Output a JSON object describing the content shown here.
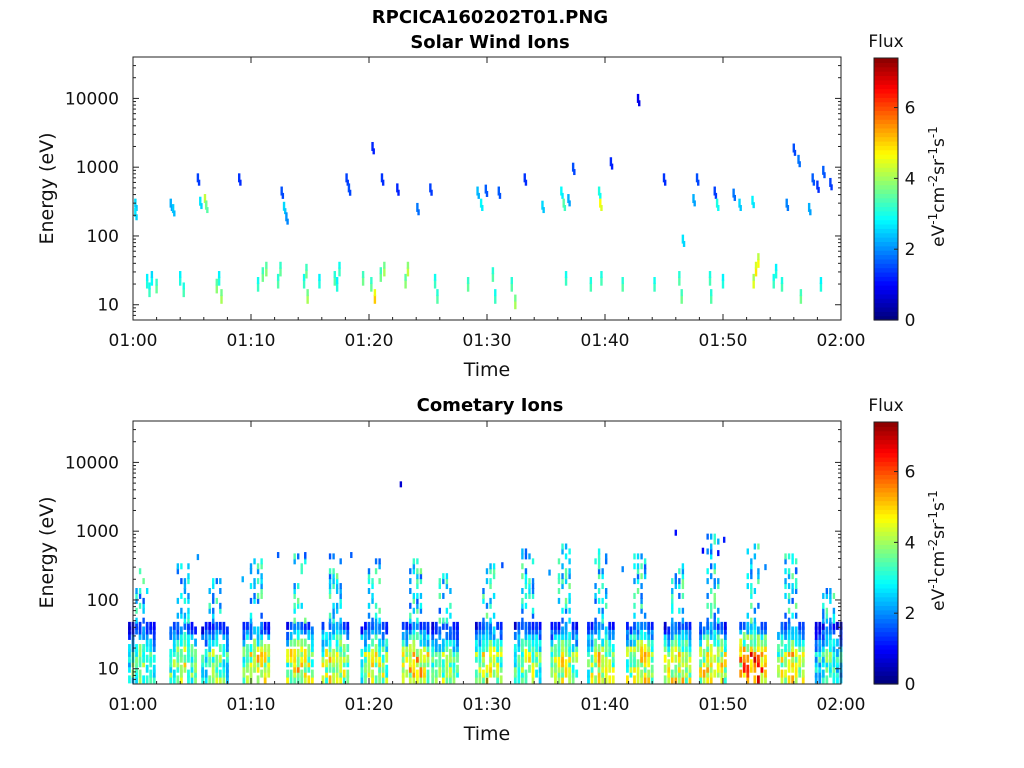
{
  "figure": {
    "title": "RPCICA160202T01.PNG"
  },
  "colorbar": {
    "label": "Flux",
    "unit_parts": [
      "eV",
      "-1",
      "cm",
      "-2",
      "sr",
      "-1",
      "s",
      "-1"
    ],
    "ticks": [
      0,
      2,
      4,
      6
    ],
    "range": [
      0,
      7.4
    ],
    "colormap": "jet"
  },
  "chart_data": [
    {
      "type": "heatmap",
      "title": "Solar Wind Ions",
      "xlabel": "Time",
      "ylabel": "Energy (eV)",
      "x_ticks": [
        "01:00",
        "01:10",
        "01:20",
        "01:30",
        "01:40",
        "01:50",
        "02:00"
      ],
      "x_range_minutes": [
        60,
        120
      ],
      "y_scale": "log",
      "y_ticks": [
        10,
        100,
        1000,
        10000
      ],
      "y_range": [
        6,
        40000
      ],
      "cells": [
        [
          60.2,
          300,
          2.5
        ],
        [
          60.2,
          220,
          2.6
        ],
        [
          61.2,
          20,
          3.0
        ],
        [
          61.4,
          15,
          3.2
        ],
        [
          61.6,
          22,
          2.8
        ],
        [
          62.0,
          17,
          3.5
        ],
        [
          63.2,
          300,
          2.2
        ],
        [
          63.4,
          250,
          2.4
        ],
        [
          64.0,
          22,
          3.0
        ],
        [
          64.3,
          15,
          3.3
        ],
        [
          65.5,
          700,
          1.4
        ],
        [
          65.7,
          320,
          2.6
        ],
        [
          66.1,
          350,
          4.2
        ],
        [
          66.2,
          280,
          3.6
        ],
        [
          67.1,
          17,
          3.8
        ],
        [
          67.3,
          22,
          3.0
        ],
        [
          67.5,
          12,
          4.0
        ],
        [
          69.0,
          700,
          1.3
        ],
        [
          70.6,
          18,
          3.2
        ],
        [
          71.0,
          25,
          3.6
        ],
        [
          71.3,
          30,
          3.8
        ],
        [
          72.3,
          20,
          3.4
        ],
        [
          72.5,
          30,
          3.5
        ],
        [
          72.6,
          450,
          1.5
        ],
        [
          72.8,
          270,
          2.5
        ],
        [
          73.0,
          190,
          2.0
        ],
        [
          74.5,
          20,
          3.2
        ],
        [
          74.7,
          28,
          3.6
        ],
        [
          74.8,
          12,
          4.0
        ],
        [
          75.8,
          20,
          3.0
        ],
        [
          77.1,
          22,
          3.4
        ],
        [
          77.3,
          18,
          3.0
        ],
        [
          77.5,
          30,
          3.2
        ],
        [
          78.1,
          700,
          1.4
        ],
        [
          78.3,
          500,
          1.5
        ],
        [
          79.5,
          22,
          3.6
        ],
        [
          80.2,
          18,
          3.5
        ],
        [
          80.5,
          12,
          5.0
        ],
        [
          81.0,
          25,
          3.6
        ],
        [
          81.3,
          30,
          4.0
        ],
        [
          80.3,
          2000,
          1.2
        ],
        [
          81.1,
          700,
          1.3
        ],
        [
          82.4,
          500,
          1.2
        ],
        [
          83.1,
          20,
          3.8
        ],
        [
          83.3,
          30,
          4.2
        ],
        [
          84.1,
          260,
          1.8
        ],
        [
          85.2,
          500,
          1.4
        ],
        [
          85.6,
          20,
          3.2
        ],
        [
          85.8,
          12,
          3.4
        ],
        [
          88.4,
          18,
          3.5
        ],
        [
          89.2,
          450,
          2.3
        ],
        [
          89.5,
          300,
          2.8
        ],
        [
          89.9,
          480,
          1.6
        ],
        [
          90.5,
          25,
          3.4
        ],
        [
          90.7,
          12,
          3.2
        ],
        [
          91.0,
          450,
          1.6
        ],
        [
          92.1,
          18,
          3.4
        ],
        [
          92.4,
          10,
          4.0
        ],
        [
          93.2,
          700,
          1.3
        ],
        [
          94.7,
          280,
          2.5
        ],
        [
          96.3,
          450,
          2.8
        ],
        [
          96.5,
          300,
          3.4
        ],
        [
          96.7,
          22,
          3.2
        ],
        [
          96.9,
          350,
          2.2
        ],
        [
          97.3,
          1000,
          1.5
        ],
        [
          98.8,
          18,
          3.3
        ],
        [
          99.5,
          450,
          3.0
        ],
        [
          99.6,
          300,
          4.6
        ],
        [
          99.7,
          22,
          3.3
        ],
        [
          100.5,
          1200,
          1.2
        ],
        [
          101.5,
          18,
          3.4
        ],
        [
          102.8,
          10000,
          0.8
        ],
        [
          104.2,
          18,
          3.2
        ],
        [
          105.0,
          700,
          1.3
        ],
        [
          106.3,
          22,
          3.4
        ],
        [
          106.5,
          12,
          3.6
        ],
        [
          106.6,
          90,
          2.6
        ],
        [
          107.5,
          350,
          2.2
        ],
        [
          107.8,
          700,
          1.5
        ],
        [
          108.9,
          22,
          3.3
        ],
        [
          109.0,
          12,
          3.4
        ],
        [
          109.3,
          450,
          1.4
        ],
        [
          109.5,
          300,
          3.0
        ],
        [
          110.0,
          20,
          3.0
        ],
        [
          110.9,
          420,
          1.8
        ],
        [
          111.4,
          300,
          2.5
        ],
        [
          112.8,
          30,
          4.8
        ],
        [
          112.6,
          20,
          4.4
        ],
        [
          113.0,
          40,
          4.6
        ],
        [
          112.5,
          330,
          2.7
        ],
        [
          114.3,
          20,
          3.2
        ],
        [
          114.5,
          28,
          3.0
        ],
        [
          115.0,
          18,
          3.3
        ],
        [
          115.4,
          300,
          1.9
        ],
        [
          116.0,
          1900,
          1.5
        ],
        [
          116.4,
          1300,
          1.8
        ],
        [
          116.6,
          12,
          3.6
        ],
        [
          117.3,
          260,
          2.2
        ],
        [
          117.6,
          700,
          1.6
        ],
        [
          118.0,
          550,
          1.3
        ],
        [
          118.3,
          18,
          3.0
        ],
        [
          118.5,
          900,
          1.6
        ],
        [
          119.1,
          600,
          1.4
        ]
      ]
    },
    {
      "type": "heatmap",
      "title": "Cometary Ions",
      "xlabel": "Time",
      "ylabel": "Energy (eV)",
      "x_ticks": [
        "01:00",
        "01:10",
        "01:20",
        "01:30",
        "01:40",
        "01:50",
        "02:00"
      ],
      "x_range_minutes": [
        60,
        120
      ],
      "y_scale": "log",
      "y_ticks": [
        10,
        100,
        1000,
        10000
      ],
      "y_range": [
        6,
        40000
      ],
      "columns": [
        60.8,
        64.3,
        67.0,
        70.5,
        74.2,
        77.2,
        80.5,
        84.0,
        86.5,
        90.2,
        93.5,
        96.6,
        99.7,
        103.0,
        106.2,
        109.2,
        112.6,
        115.8,
        119.0
      ],
      "column_peaks": [
        4.6,
        5.2,
        4.6,
        5.6,
        5.8,
        5.8,
        5.4,
        6.0,
        4.8,
        5.6,
        5.2,
        5.4,
        5.6,
        5.8,
        5.8,
        6.2,
        7.2,
        5.8,
        4.2
      ],
      "column_tops": [
        300,
        350,
        220,
        400,
        480,
        450,
        420,
        400,
        250,
        350,
        550,
        600,
        550,
        450,
        350,
        900,
        600,
        500,
        150
      ],
      "extra_cells": [
        [
          82.7,
          4800,
          0.6
        ],
        [
          106.0,
          950,
          1.0
        ],
        [
          108.3,
          520,
          0.9
        ],
        [
          109.6,
          480,
          1.0
        ],
        [
          110.1,
          750,
          1.1
        ],
        [
          113.6,
          300,
          1.9
        ],
        [
          116.2,
          270,
          1.6
        ],
        [
          65.5,
          420,
          2.0
        ],
        [
          69.3,
          200,
          2.2
        ],
        [
          72.3,
          450,
          1.6
        ],
        [
          74.6,
          450,
          1.5
        ],
        [
          78.5,
          450,
          1.6
        ],
        [
          91.3,
          320,
          1.5
        ],
        [
          95.3,
          250,
          2.0
        ],
        [
          101.5,
          280,
          1.9
        ]
      ]
    }
  ]
}
